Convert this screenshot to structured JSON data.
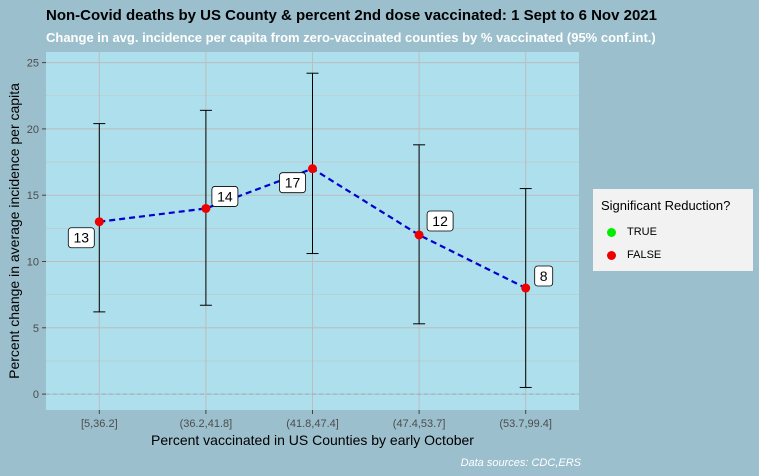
{
  "chart_data": {
    "type": "scatter",
    "title": "Non-Covid deaths by US County & percent 2nd dose vaccinated: 1 Sept to 6 Nov 2021",
    "subtitle": "Change in avg. incidence per capita from zero-vaccinated counties by % vaccinated (95% conf.int.)",
    "xlabel": "Percent vaccinated in US Counties by early October",
    "ylabel": "Percent change in average incidence per capita",
    "categories": [
      "[5,36.2]",
      "(36.2,41.8]",
      "(41.8,47.4]",
      "(47.4,53.7]",
      "(53.7,99.4]"
    ],
    "values": [
      13,
      14,
      17,
      12,
      8
    ],
    "ci_lower": [
      6.2,
      6.7,
      10.6,
      5.3,
      0.5
    ],
    "ci_upper": [
      20.4,
      21.4,
      24.2,
      18.8,
      15.5
    ],
    "point_labels": [
      "13",
      "14",
      "17",
      "12",
      "8"
    ],
    "significant": [
      false,
      false,
      false,
      false,
      false
    ],
    "ylim": [
      -1.2,
      25.8
    ],
    "y_ticks": [
      0,
      5,
      10,
      15,
      20,
      25
    ],
    "grid": true,
    "line_style": "dashed",
    "line_color": "#0000cc",
    "point_color_false": "#ee0000",
    "point_color_true": "#00ee00",
    "panel_color": "#addfed",
    "legend": {
      "title": "Significant Reduction?",
      "position": "right",
      "entries": [
        {
          "label": "TRUE",
          "color": "#00ee00"
        },
        {
          "label": "FALSE",
          "color": "#ee0000"
        }
      ]
    },
    "caption": "Data sources: CDC,ERS"
  }
}
